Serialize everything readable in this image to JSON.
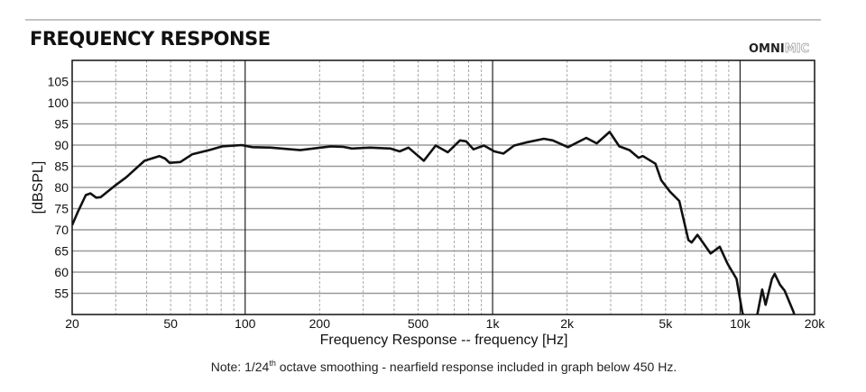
{
  "header": {
    "title": "FREQUENCY RESPONSE",
    "logo_text": "OMNIMIC"
  },
  "note": {
    "prefix": "Note: 1/24",
    "sup": "th",
    "suffix": " octave smoothing - nearfield response included in graph below 450 Hz."
  },
  "chart_data": {
    "type": "line",
    "title": "FREQUENCY RESPONSE",
    "xlabel": "Frequency Response -- frequency [Hz]",
    "ylabel": "[dBSPL]",
    "xscale": "log",
    "xlim": [
      20,
      20000
    ],
    "ylim": [
      50,
      110
    ],
    "grid": true,
    "x_ticks": [
      {
        "v": 20,
        "label": "20"
      },
      {
        "v": 50,
        "label": "50"
      },
      {
        "v": 100,
        "label": "100"
      },
      {
        "v": 200,
        "label": "200"
      },
      {
        "v": 500,
        "label": "500"
      },
      {
        "v": 1000,
        "label": "1k"
      },
      {
        "v": 2000,
        "label": "2k"
      },
      {
        "v": 5000,
        "label": "5k"
      },
      {
        "v": 10000,
        "label": "10k"
      },
      {
        "v": 20000,
        "label": "20k"
      }
    ],
    "y_ticks": [
      {
        "v": 55,
        "label": "55"
      },
      {
        "v": 60,
        "label": "60"
      },
      {
        "v": 65,
        "label": "65"
      },
      {
        "v": 70,
        "label": "70"
      },
      {
        "v": 75,
        "label": "75"
      },
      {
        "v": 80,
        "label": "80"
      },
      {
        "v": 85,
        "label": "85"
      },
      {
        "v": 90,
        "label": "90"
      },
      {
        "v": 95,
        "label": "95"
      },
      {
        "v": 100,
        "label": "100"
      },
      {
        "v": 105,
        "label": "105"
      }
    ],
    "series": [
      {
        "name": "response",
        "segments": [
          [
            [
              20,
              71.1
            ],
            [
              21,
              74
            ],
            [
              22.7,
              78.2
            ],
            [
              23.7,
              78.6
            ],
            [
              25,
              77.6
            ],
            [
              26.1,
              77.7
            ],
            [
              29.6,
              80.3
            ],
            [
              33.1,
              82.4
            ],
            [
              39.2,
              86.3
            ],
            [
              45,
              87.4
            ],
            [
              47.5,
              86.8
            ],
            [
              49.5,
              85.8
            ],
            [
              54.7,
              86
            ],
            [
              61,
              87.8
            ],
            [
              72.3,
              88.9
            ],
            [
              80.9,
              89.7
            ],
            [
              96.8,
              90
            ],
            [
              107,
              89.5
            ],
            [
              127,
              89.4
            ],
            [
              167,
              88.8
            ],
            [
              222,
              89.7
            ],
            [
              248,
              89.6
            ],
            [
              270,
              89.2
            ],
            [
              319,
              89.4
            ],
            [
              386,
              89.2
            ],
            [
              421,
              88.5
            ],
            [
              457,
              89.4
            ],
            [
              527,
              86.3
            ],
            [
              589,
              89.9
            ],
            [
              659,
              88.3
            ],
            [
              738,
              91.1
            ],
            [
              781,
              90.9
            ],
            [
              837,
              89
            ],
            [
              923,
              89.9
            ],
            [
              1016,
              88.5
            ],
            [
              1105,
              88
            ],
            [
              1222,
              89.9
            ],
            [
              1361,
              90.6
            ],
            [
              1611,
              91.5
            ],
            [
              1750,
              91.1
            ],
            [
              2018,
              89.5
            ],
            [
              2390,
              91.7
            ],
            [
              2635,
              90.4
            ],
            [
              2970,
              93.1
            ],
            [
              3250,
              89.7
            ],
            [
              3575,
              88.8
            ],
            [
              3890,
              87
            ],
            [
              4050,
              87.4
            ],
            [
              4550,
              85.6
            ],
            [
              4800,
              81.7
            ],
            [
              5210,
              79
            ],
            [
              5680,
              76.8
            ],
            [
              6180,
              67.6
            ],
            [
              6370,
              67
            ],
            [
              6730,
              68.8
            ],
            [
              7600,
              64.4
            ],
            [
              8280,
              66
            ],
            [
              8900,
              62
            ],
            [
              9680,
              58.4
            ],
            [
              10200,
              50.6
            ],
            [
              10400,
              49
            ]
          ],
          [
            [
              11600,
              49
            ],
            [
              11770,
              50.3
            ],
            [
              12280,
              55.9
            ],
            [
              12680,
              52.3
            ],
            [
              13450,
              58.4
            ],
            [
              13800,
              59.6
            ],
            [
              14500,
              57
            ],
            [
              15150,
              55.6
            ],
            [
              16450,
              50.6
            ],
            [
              16700,
              49
            ]
          ]
        ]
      }
    ]
  }
}
